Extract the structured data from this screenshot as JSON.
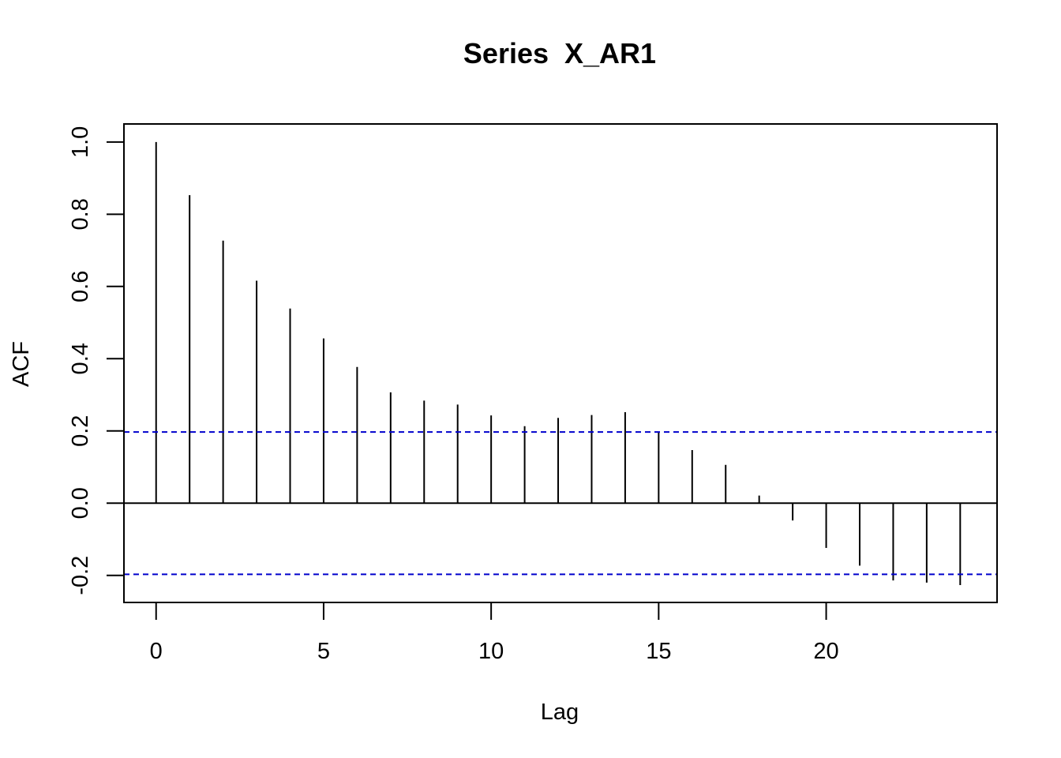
{
  "chart_data": {
    "type": "bar",
    "title": "Series  X_AR1",
    "xlabel": "Lag",
    "ylabel": "ACF",
    "xlim": [
      -0.96,
      25.1
    ],
    "ylim": [
      -0.275,
      1.05
    ],
    "x_ticks": [
      0,
      5,
      10,
      15,
      20
    ],
    "x_tick_labels": [
      "0",
      "5",
      "10",
      "15",
      "20"
    ],
    "y_ticks": [
      -0.2,
      0.0,
      0.2,
      0.4,
      0.6,
      0.8,
      1.0
    ],
    "y_tick_labels": [
      "-0.2",
      "0.0",
      "0.2",
      "0.4",
      "0.6",
      "0.8",
      "1.0"
    ],
    "lags": [
      0,
      1,
      2,
      3,
      4,
      5,
      6,
      7,
      8,
      9,
      10,
      11,
      12,
      13,
      14,
      15,
      16,
      17,
      18,
      19,
      20,
      21,
      22,
      23,
      24
    ],
    "acf": [
      1.0,
      0.853,
      0.727,
      0.616,
      0.539,
      0.456,
      0.377,
      0.307,
      0.284,
      0.273,
      0.243,
      0.213,
      0.236,
      0.244,
      0.252,
      0.196,
      0.147,
      0.106,
      0.021,
      -0.048,
      -0.124,
      -0.173,
      -0.214,
      -0.22,
      -0.227
    ],
    "confidence_bound": 0.197,
    "bound_color": "#0000cc",
    "bar_color": "#000000",
    "grid": false
  }
}
